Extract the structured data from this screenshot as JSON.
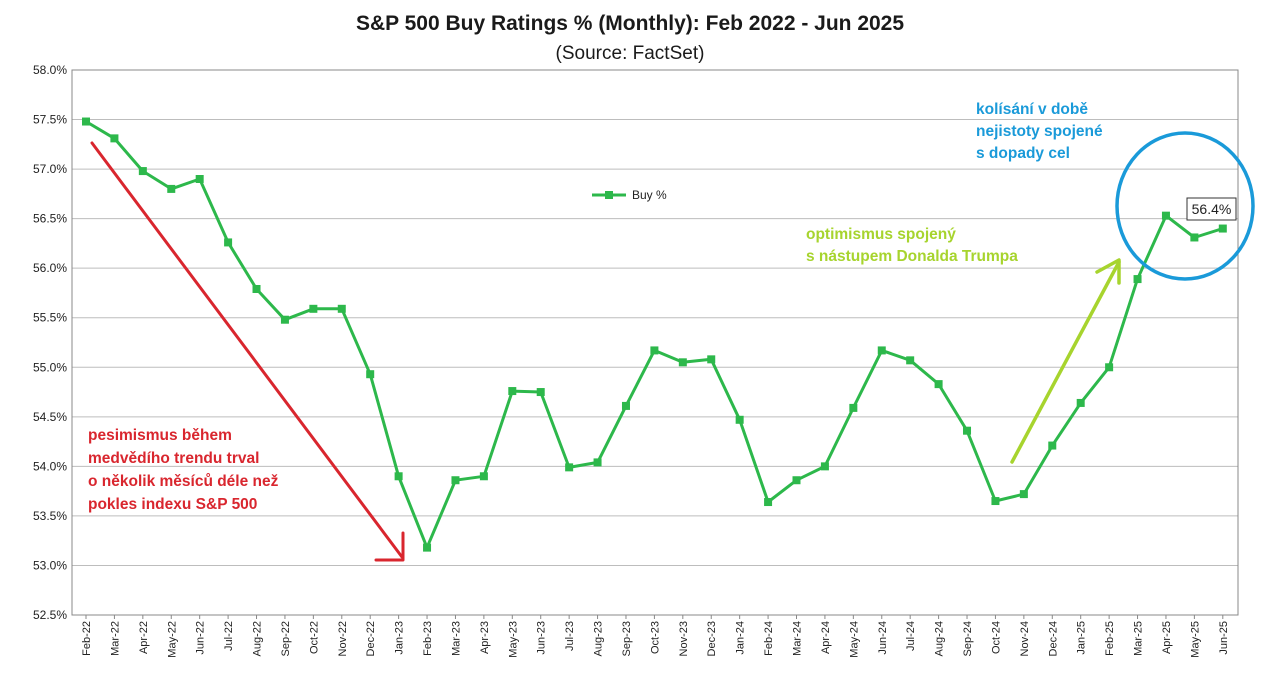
{
  "chart_data": {
    "type": "line",
    "title": "S&P 500 Buy Ratings % (Monthly):  Feb 2022 - Jun 2025",
    "subtitle": "(Source: FactSet)",
    "y_tick_labels": [
      "52.5%",
      "53.0%",
      "53.5%",
      "54.0%",
      "54.5%",
      "55.0%",
      "55.5%",
      "56.0%",
      "56.5%",
      "57.0%",
      "57.5%",
      "58.0%"
    ],
    "ylim": [
      52.5,
      58.0
    ],
    "y_unit": "%",
    "grid": true,
    "legend": "top-center",
    "categories": [
      "Feb-22",
      "Mar-22",
      "Apr-22",
      "May-22",
      "Jun-22",
      "Jul-22",
      "Aug-22",
      "Sep-22",
      "Oct-22",
      "Nov-22",
      "Dec-22",
      "Jan-23",
      "Feb-23",
      "Mar-23",
      "Apr-23",
      "May-23",
      "Jun-23",
      "Jul-23",
      "Aug-23",
      "Sep-23",
      "Oct-23",
      "Nov-23",
      "Dec-23",
      "Jan-24",
      "Feb-24",
      "Mar-24",
      "Apr-24",
      "May-24",
      "Jun-24",
      "Jul-24",
      "Aug-24",
      "Sep-24",
      "Oct-24",
      "Nov-24",
      "Dec-24",
      "Jan-25",
      "Feb-25",
      "Mar-25",
      "Apr-25",
      "May-25",
      "Jun-25"
    ],
    "series": [
      {
        "name": "Buy %",
        "color": "#2db84b",
        "values": [
          57.48,
          57.31,
          56.98,
          56.8,
          56.9,
          56.26,
          55.79,
          55.48,
          55.59,
          55.59,
          54.93,
          53.9,
          53.18,
          53.86,
          53.9,
          54.76,
          54.75,
          53.99,
          54.04,
          54.61,
          55.17,
          55.05,
          55.08,
          54.47,
          53.64,
          53.86,
          54.0,
          54.59,
          55.17,
          55.07,
          54.83,
          54.36,
          53.65,
          53.72,
          54.21,
          54.64,
          55.0,
          55.89,
          56.53,
          56.31,
          56.4
        ]
      }
    ],
    "data_label": "56.4%",
    "annotations": {
      "red": {
        "color": "#d9262e",
        "lines": [
          "pesimismus během",
          "medvědího trendu trval",
          "o několik měsíců déle než",
          "pokles indexu S&P 500"
        ]
      },
      "green": {
        "color": "#a7d42e",
        "lines": [
          "optimismus spojený",
          "s nástupem Donalda Trumpa"
        ]
      },
      "blue": {
        "color": "#1a9ad9",
        "lines": [
          "kolísání v době",
          "nejistoty spojené",
          "s dopady cel"
        ]
      }
    }
  }
}
